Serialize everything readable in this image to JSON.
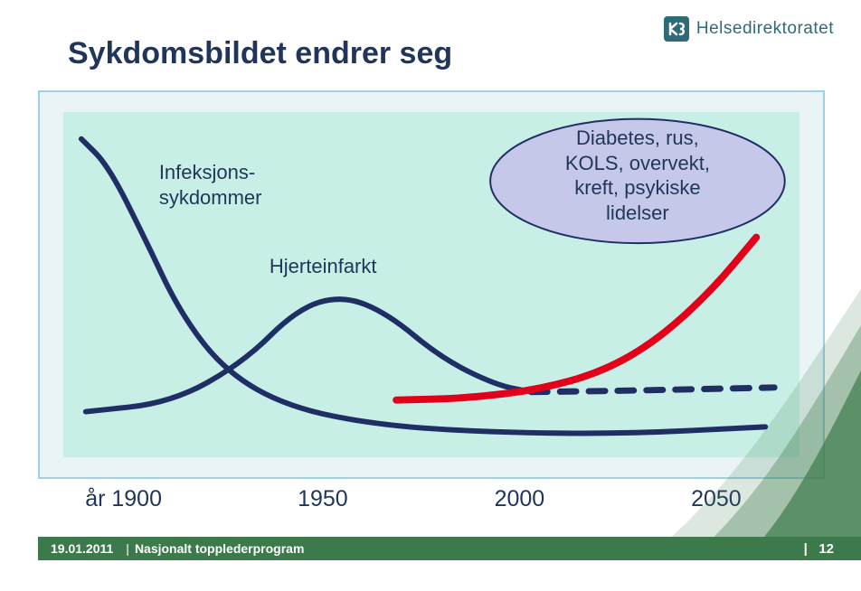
{
  "brand": {
    "name": "Helsedirektoratet",
    "logo_bg": "#2e6b78",
    "logo_text_color": "#2e6b78"
  },
  "title": "Sykdomsbildet endrer seg",
  "title_color": "#1f3559",
  "title_fontsize": 34,
  "chart": {
    "type": "line",
    "outer_border_color": "#9fd0df",
    "outer_bg": "#eaf4f7",
    "inner_bg": "#c7efe6",
    "viewbox_w": 818,
    "viewbox_h": 386,
    "series": [
      {
        "id": "infections",
        "label": "Infeksjons-\nsykdommer",
        "label_x_pct": 13,
        "label_y_pct": 14,
        "label_fontsize": 22,
        "color": "#1f2f66",
        "stroke_width": 6,
        "dash": "none",
        "points": [
          {
            "x": 20,
            "y": 30
          },
          {
            "x": 50,
            "y": 60
          },
          {
            "x": 90,
            "y": 140
          },
          {
            "x": 130,
            "y": 225
          },
          {
            "x": 180,
            "y": 290
          },
          {
            "x": 250,
            "y": 330
          },
          {
            "x": 350,
            "y": 350
          },
          {
            "x": 470,
            "y": 358
          },
          {
            "x": 620,
            "y": 360
          },
          {
            "x": 780,
            "y": 352
          }
        ]
      },
      {
        "id": "heart",
        "label": "Hjerteinfarkt",
        "label_x_pct": 28,
        "label_y_pct": 41,
        "label_fontsize": 22,
        "color": "#1f2f66",
        "stroke_width": 6,
        "dash": "none",
        "points": [
          {
            "x": 25,
            "y": 335
          },
          {
            "x": 120,
            "y": 325
          },
          {
            "x": 200,
            "y": 280
          },
          {
            "x": 260,
            "y": 220
          },
          {
            "x": 310,
            "y": 205
          },
          {
            "x": 360,
            "y": 225
          },
          {
            "x": 420,
            "y": 275
          },
          {
            "x": 480,
            "y": 305
          },
          {
            "x": 520,
            "y": 313
          }
        ]
      },
      {
        "id": "heart-dash",
        "label": "",
        "color": "#1f2f66",
        "stroke_width": 7,
        "dash": "18 14",
        "points": [
          {
            "x": 520,
            "y": 313
          },
          {
            "x": 600,
            "y": 312
          },
          {
            "x": 700,
            "y": 310
          },
          {
            "x": 790,
            "y": 308
          }
        ]
      },
      {
        "id": "chronic",
        "label": "Diabetes, rus,\nKOLS, overvekt,\nkreft, psykiske\nlidelser",
        "label_x_pct": 62,
        "label_y_pct": 6,
        "label_fontsize": 22,
        "color": "#e2001a",
        "stroke_width": 8,
        "dash": "none",
        "points": [
          {
            "x": 370,
            "y": 322
          },
          {
            "x": 450,
            "y": 320
          },
          {
            "x": 530,
            "y": 310
          },
          {
            "x": 600,
            "y": 290
          },
          {
            "x": 660,
            "y": 255
          },
          {
            "x": 720,
            "y": 200
          },
          {
            "x": 770,
            "y": 140
          }
        ]
      }
    ],
    "ellipse": {
      "cx_pct": 78,
      "cy_pct": 20,
      "rx_pct": 20,
      "ry_pct": 18,
      "fill": "#c6c8ea",
      "stroke": "#1f2f66",
      "stroke_width": 2
    },
    "x_axis": {
      "labels": [
        {
          "text": "år 1900",
          "x_pct": 6
        },
        {
          "text": "1950",
          "x_pct": 33
        },
        {
          "text": "2000",
          "x_pct": 58
        },
        {
          "text": "2050",
          "x_pct": 83
        }
      ],
      "fontsize": 25,
      "color": "#1f3559"
    }
  },
  "footer": {
    "date": "19.01.2011",
    "separator": "|",
    "program": "Nasjonalt topplederprogram",
    "page_prefix": "|",
    "page": "12",
    "bar_color": "#3d7a4b",
    "swoosh_color": "#3d7a4b"
  }
}
